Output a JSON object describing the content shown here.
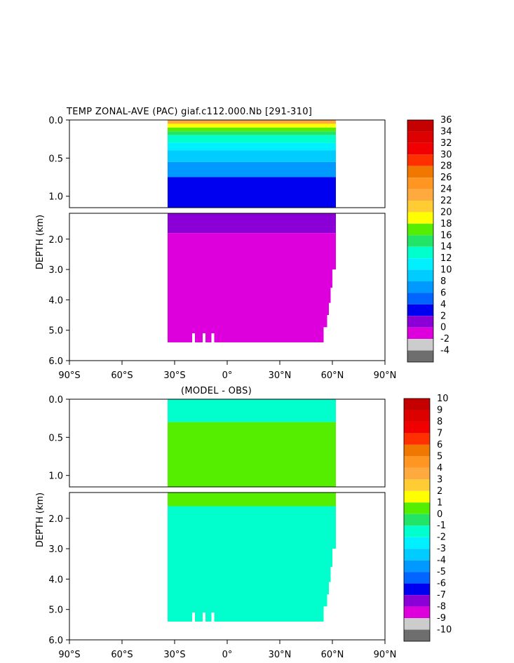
{
  "chart_data": [
    {
      "type": "heatmap",
      "title": "TEMP ZONAL-AVE (PAC) giaf.c112.000.Nb [291-310]",
      "ylabel": "DEPTH (km)",
      "xlabel": "",
      "x_ticks": [
        "90°S",
        "60°S",
        "30°S",
        "0°",
        "30°N",
        "60°N",
        "90°N"
      ],
      "y_ticks_upper": [
        "0.0",
        "0.5",
        "1.0"
      ],
      "y_ticks_lower": [
        "2.0",
        "3.0",
        "4.0",
        "5.0",
        "6.0"
      ],
      "xlim": [
        -90,
        90
      ],
      "ylim": [
        0,
        6
      ],
      "colorbar": {
        "labels": [
          "36",
          "34",
          "32",
          "30",
          "28",
          "26",
          "24",
          "22",
          "20",
          "18",
          "16",
          "14",
          "12",
          "10",
          "8",
          "6",
          "4",
          "2",
          "0",
          "-2",
          "-4"
        ],
        "colors": [
          "#c40000",
          "#dc0000",
          "#f00000",
          "#ff3000",
          "#f07800",
          "#ff9622",
          "#ffaa3e",
          "#ffcc33",
          "#ffff00",
          "#55ee00",
          "#22e466",
          "#00ffcc",
          "#00f0ff",
          "#00ccff",
          "#0099ff",
          "#0066ff",
          "#0000f0",
          "#8a00d6",
          "#dd00dd",
          "#cccccc",
          "#6e6e6e"
        ]
      },
      "bands_upper": [
        {
          "depth_km": 0.05,
          "color": "#ffaa3e"
        },
        {
          "depth_km": 0.1,
          "color": "#ffff00"
        },
        {
          "depth_km": 0.15,
          "color": "#55ee00"
        },
        {
          "depth_km": 0.2,
          "color": "#22e466"
        },
        {
          "depth_km": 0.3,
          "color": "#00ffcc"
        },
        {
          "depth_km": 0.4,
          "color": "#00f0ff"
        },
        {
          "depth_km": 0.55,
          "color": "#00ccff"
        },
        {
          "depth_km": 0.75,
          "color": "#0099ff"
        },
        {
          "depth_km": 1.15,
          "color": "#0000f0"
        }
      ],
      "bands_lower": [
        {
          "depth_km": 1.8,
          "color": "#8a00d6"
        },
        {
          "depth_km": 5.4,
          "color": "#dd00dd"
        }
      ]
    },
    {
      "type": "heatmap",
      "title": "(MODEL - OBS)",
      "ylabel": "DEPTH (km)",
      "xlabel": "",
      "x_ticks": [
        "90°S",
        "60°S",
        "30°S",
        "0°",
        "30°N",
        "60°N",
        "90°N"
      ],
      "y_ticks_upper": [
        "0.0",
        "0.5",
        "1.0"
      ],
      "y_ticks_lower": [
        "2.0",
        "3.0",
        "4.0",
        "5.0",
        "6.0"
      ],
      "xlim": [
        -90,
        90
      ],
      "ylim": [
        0,
        6
      ],
      "colorbar": {
        "labels": [
          "10",
          "9",
          "8",
          "7",
          "6",
          "5",
          "4",
          "3",
          "2",
          "1",
          "0",
          "-1",
          "-2",
          "-3",
          "-4",
          "-5",
          "-6",
          "-7",
          "-8",
          "-9",
          "-10"
        ],
        "colors": [
          "#c40000",
          "#dc0000",
          "#f00000",
          "#ff3000",
          "#f07800",
          "#ff9622",
          "#ffaa3e",
          "#ffcc33",
          "#ffff00",
          "#55ee00",
          "#22e466",
          "#00ffcc",
          "#00f0ff",
          "#00ccff",
          "#0099ff",
          "#0066ff",
          "#0000f0",
          "#8a00d6",
          "#dd00dd",
          "#cccccc",
          "#6e6e6e"
        ]
      },
      "bands_upper": [
        {
          "depth_km": 0.3,
          "color": "#00ffcc"
        },
        {
          "depth_km": 1.15,
          "color": "#55ee00"
        }
      ],
      "bands_lower": [
        {
          "depth_km": 1.6,
          "color": "#55ee00"
        },
        {
          "depth_km": 5.4,
          "color": "#00ffcc"
        }
      ]
    }
  ]
}
